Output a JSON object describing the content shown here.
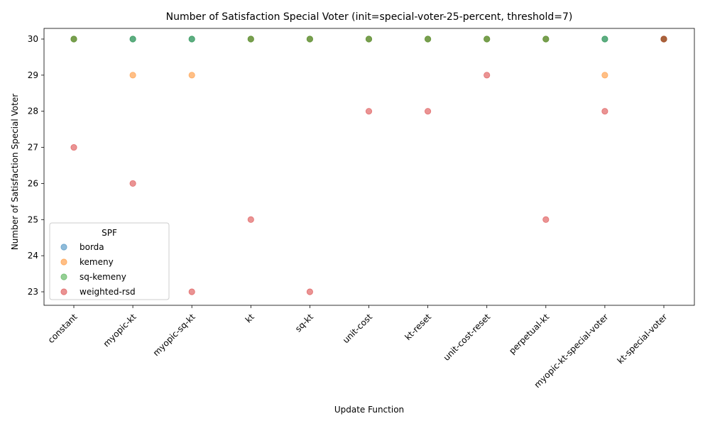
{
  "chart_data": {
    "type": "scatter",
    "title": "Number of Satisfaction Special Voter (init=special-voter-25-percent, threshold=7)",
    "xlabel": "Update Function",
    "ylabel": "Number of Satisfaction Special Voter",
    "categories": [
      "constant",
      "myopic-kt",
      "myopic-sq-kt",
      "kt",
      "sq-kt",
      "unit-cost",
      "kt-reset",
      "unit-cost-reset",
      "perpetual-kt",
      "myopic-kt-special-voter",
      "kt-special-voter"
    ],
    "ylim": [
      23,
      30
    ],
    "yticks": [
      23,
      24,
      25,
      26,
      27,
      28,
      29,
      30
    ],
    "grid": false,
    "legend": {
      "title": "SPF",
      "position": "lower-left"
    },
    "series": [
      {
        "name": "borda",
        "color": "#1f77b4",
        "values": [
          30,
          30,
          30,
          30,
          30,
          30,
          30,
          30,
          30,
          30,
          30
        ]
      },
      {
        "name": "kemeny",
        "color": "#ff7f0e",
        "values": [
          30,
          29,
          29,
          30,
          30,
          30,
          30,
          30,
          30,
          29,
          30
        ]
      },
      {
        "name": "sq-kemeny",
        "color": "#2ca02c",
        "values": [
          30,
          30,
          30,
          30,
          30,
          30,
          30,
          30,
          30,
          30,
          30
        ]
      },
      {
        "name": "weighted-rsd",
        "color": "#d62728",
        "values": [
          27,
          26,
          23,
          25,
          23,
          28,
          28,
          29,
          25,
          28,
          30
        ]
      }
    ]
  }
}
